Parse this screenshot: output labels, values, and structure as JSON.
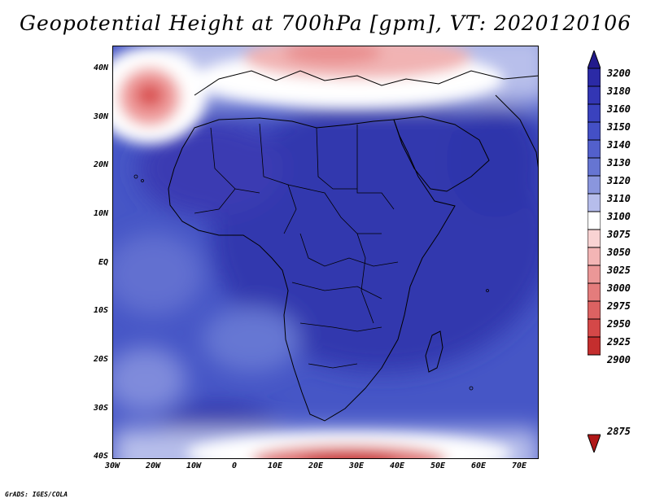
{
  "title": "Geopotential Height at 700hPa [gpm], VT: 2020120106",
  "footer": "GrADS: IGES/COLA",
  "map": {
    "lat_labels": [
      "40N",
      "30N",
      "20N",
      "10N",
      "EQ",
      "10S",
      "20S",
      "30S",
      "40S"
    ],
    "lon_labels": [
      "30W",
      "20W",
      "10W",
      "0",
      "10E",
      "20E",
      "30E",
      "40E",
      "50E",
      "60E",
      "70E"
    ],
    "lat_range": [
      -40,
      45
    ],
    "lon_range": [
      -30,
      75
    ]
  },
  "colorbar": {
    "levels": [
      "3200",
      "3180",
      "3160",
      "3150",
      "3140",
      "3130",
      "3120",
      "3110",
      "3100",
      "3075",
      "3050",
      "3025",
      "3000",
      "2975",
      "2950",
      "2925",
      "2900",
      "2875"
    ],
    "colors": [
      "#221a8c",
      "#2b2aa6",
      "#3336b4",
      "#3a42be",
      "#4450c6",
      "#5360cc",
      "#6675d2",
      "#8a96dd",
      "#b6bdeb",
      "#ffffff",
      "#f9d3d3",
      "#f3b5b5",
      "#eb9797",
      "#e47c7c",
      "#dc6262",
      "#d44848",
      "#c42e2e",
      "#b01818"
    ]
  }
}
